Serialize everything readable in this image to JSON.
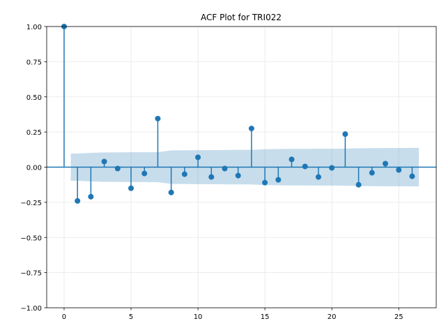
{
  "chart_data": {
    "type": "stem",
    "title": "ACF Plot for TRI022",
    "xlabel": "",
    "ylabel": "",
    "xlim": [
      -1.3,
      27.8
    ],
    "ylim": [
      -1.0,
      1.0
    ],
    "x_ticks": [
      0,
      5,
      10,
      15,
      20,
      25
    ],
    "y_ticks": [
      1.0,
      0.75,
      0.5,
      0.25,
      0.0,
      -0.25,
      -0.5,
      -0.75,
      -1.0
    ],
    "x_tick_labels": [
      "0",
      "5",
      "10",
      "15",
      "20",
      "25"
    ],
    "y_tick_labels": [
      "1.00",
      "0.75",
      "0.50",
      "0.25",
      "0.00",
      "−0.25",
      "−0.50",
      "−0.75",
      "−1.00"
    ],
    "grid": true,
    "lags": [
      0,
      1,
      2,
      3,
      4,
      5,
      6,
      7,
      8,
      9,
      10,
      11,
      12,
      13,
      14,
      15,
      16,
      17,
      18,
      19,
      20,
      21,
      22,
      23,
      24,
      25,
      26
    ],
    "acf": [
      1.0,
      -0.24,
      -0.21,
      0.04,
      -0.01,
      -0.15,
      -0.045,
      0.345,
      -0.18,
      -0.05,
      0.07,
      -0.07,
      -0.01,
      -0.06,
      0.275,
      -0.11,
      -0.09,
      0.055,
      0.005,
      -0.07,
      -0.005,
      0.235,
      -0.125,
      -0.04,
      0.025,
      -0.02,
      -0.065
    ],
    "confidence_band": {
      "lags": [
        0.5,
        1,
        2,
        3,
        4,
        5,
        6,
        7,
        8,
        9,
        10,
        11,
        12,
        13,
        14,
        15,
        16,
        17,
        18,
        19,
        20,
        21,
        22,
        23,
        24,
        25,
        26,
        26.5
      ],
      "upper": [
        0.097,
        0.097,
        0.102,
        0.105,
        0.105,
        0.106,
        0.106,
        0.107,
        0.119,
        0.12,
        0.121,
        0.121,
        0.122,
        0.123,
        0.123,
        0.128,
        0.129,
        0.13,
        0.13,
        0.131,
        0.131,
        0.132,
        0.134,
        0.135,
        0.136,
        0.136,
        0.137,
        0.137
      ],
      "lower": [
        -0.097,
        -0.097,
        -0.102,
        -0.105,
        -0.105,
        -0.106,
        -0.106,
        -0.107,
        -0.119,
        -0.12,
        -0.121,
        -0.121,
        -0.122,
        -0.123,
        -0.123,
        -0.128,
        -0.129,
        -0.13,
        -0.13,
        -0.131,
        -0.131,
        -0.132,
        -0.134,
        -0.135,
        -0.136,
        -0.136,
        -0.137,
        -0.137
      ]
    },
    "colors": {
      "marker": "#1f77b4",
      "band": "#1f77b4",
      "zero_line": "#1f77b4",
      "grid": "#e6e6e6",
      "axes": "#000000"
    }
  }
}
